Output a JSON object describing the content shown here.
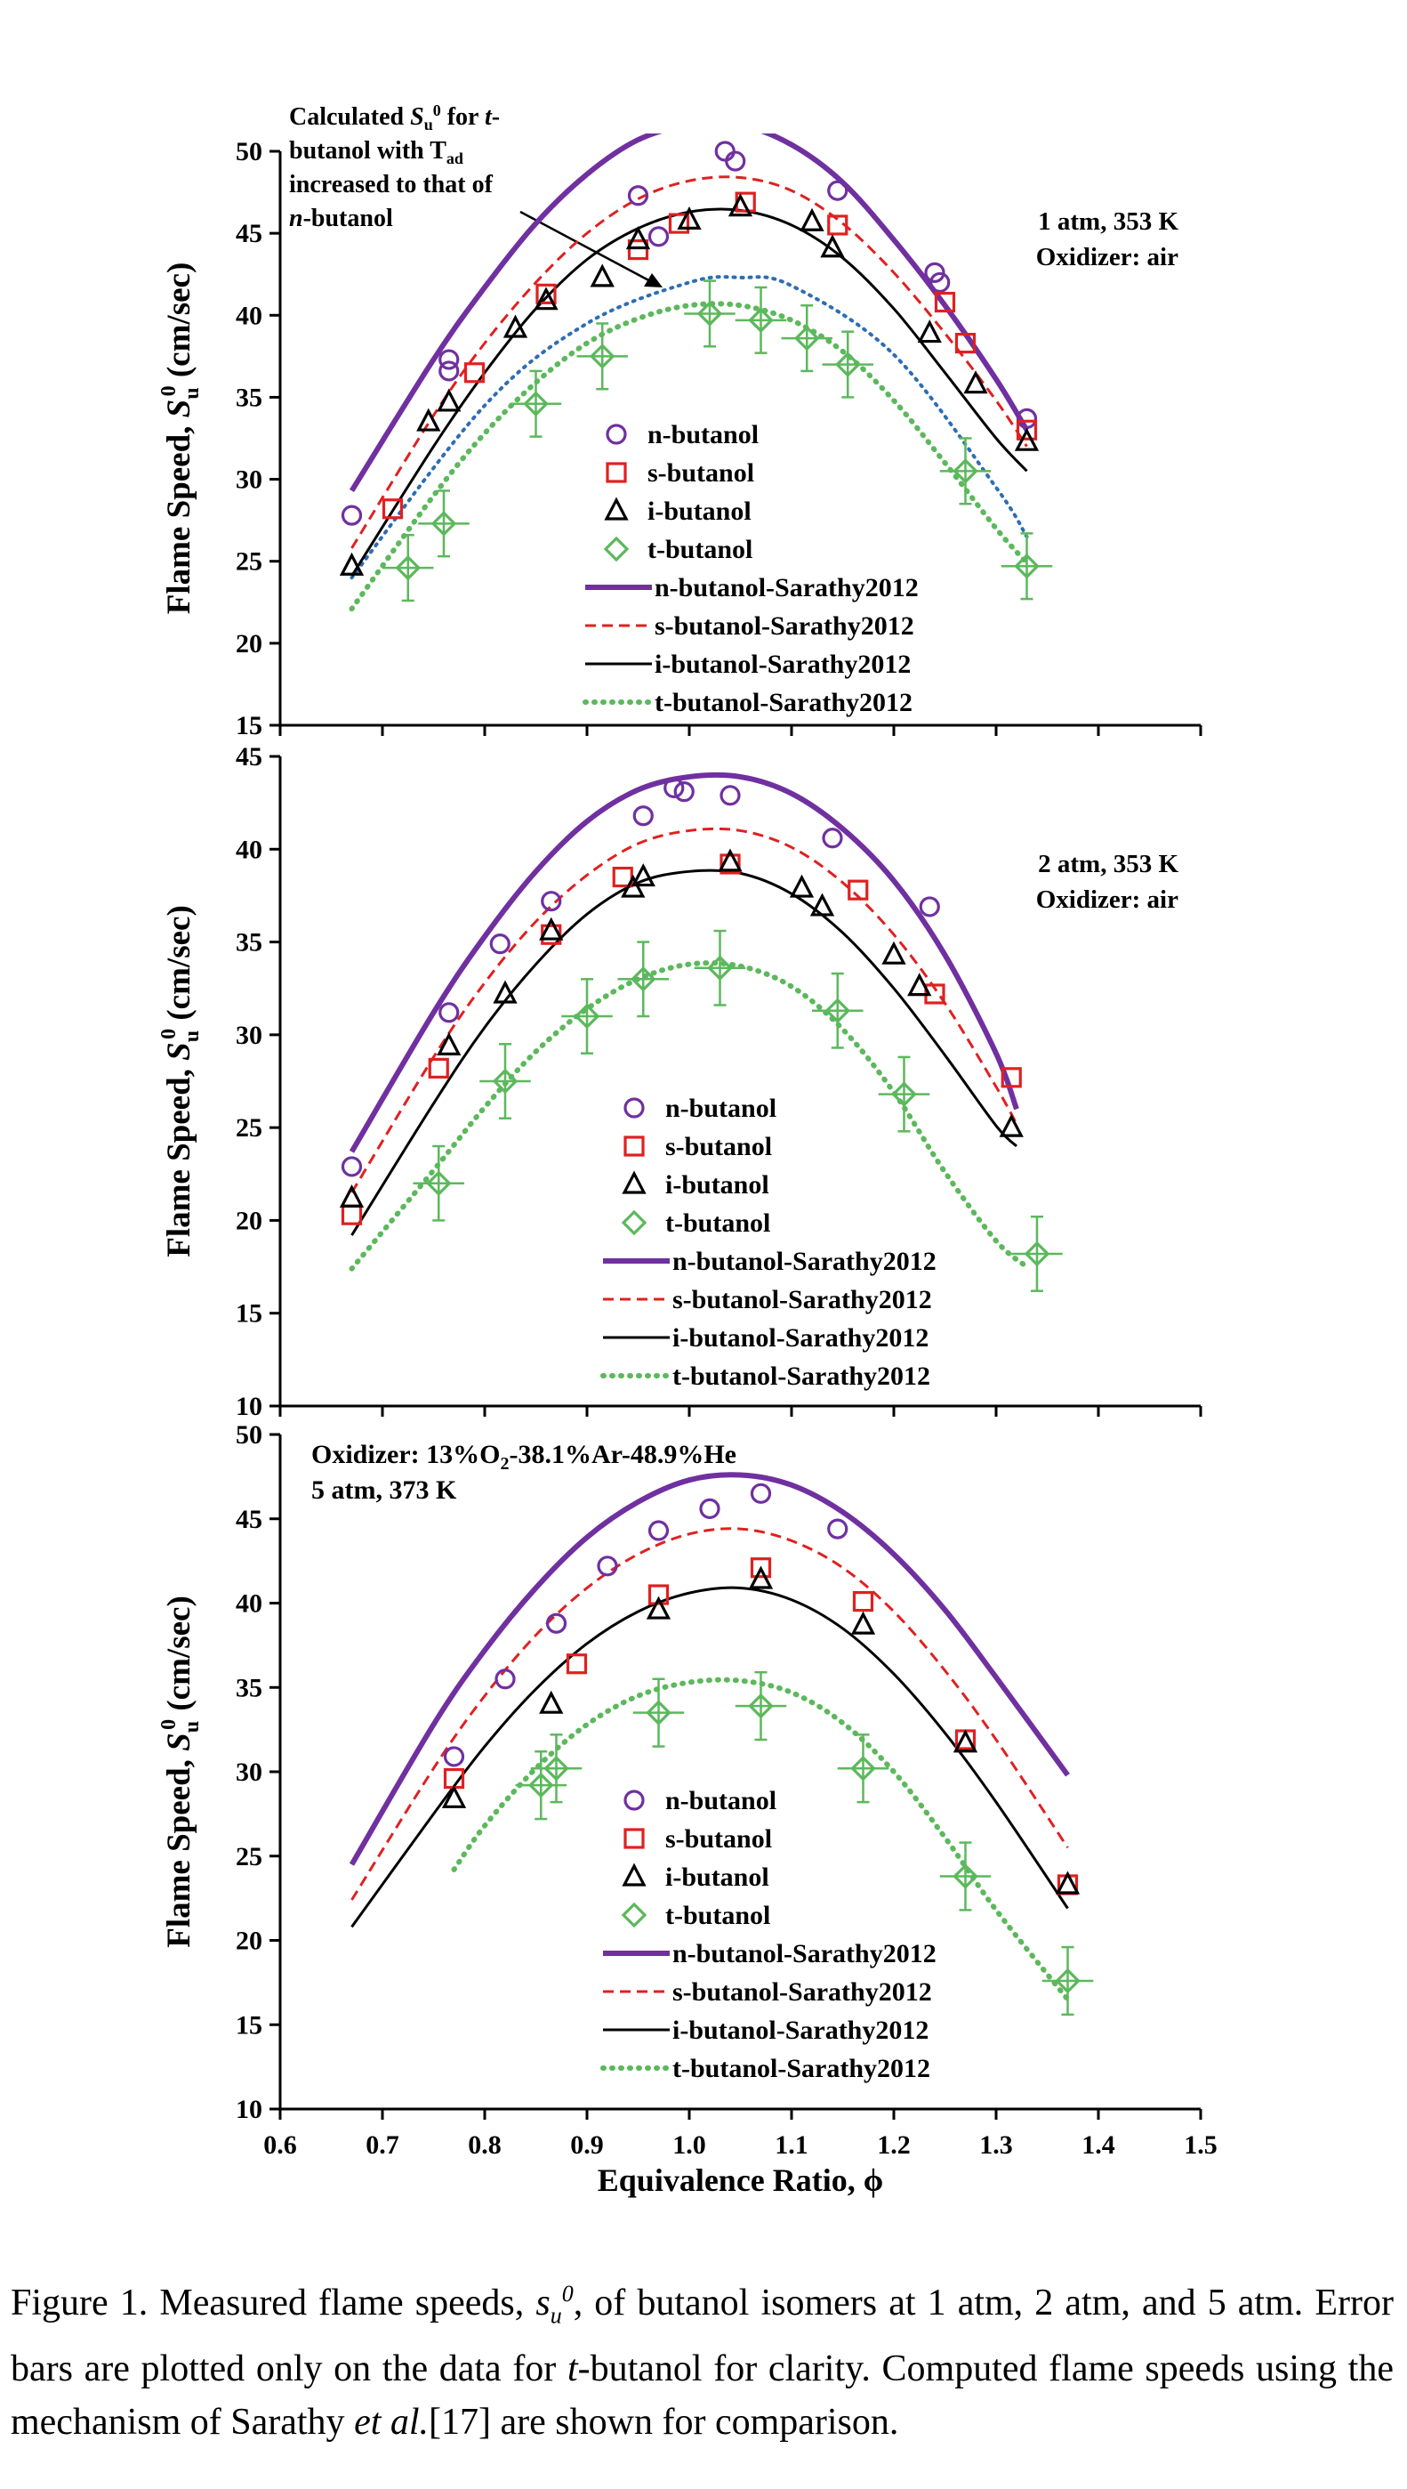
{
  "figure": {
    "x_label": "Equivalence Ratio, ϕ",
    "x_ticks": [
      "0.6",
      "0.7",
      "0.8",
      "0.9",
      "1.0",
      "1.1",
      "1.2",
      "1.3",
      "1.4",
      "1.5"
    ],
    "y_label_prefix": "Flame Speed, ",
    "y_label_symbol": "S",
    "y_label_sub": "u",
    "y_label_sup": "0",
    "y_label_unit": " (cm/sec)",
    "legend_markers": [
      "n-butanol",
      "s-butanol",
      "i-butanol",
      "t-butanol"
    ],
    "legend_lines": [
      "n-butanol-Sarathy2012",
      "s-butanol-Sarathy2012",
      "i-butanol-Sarathy2012",
      "t-butanol-Sarathy2012"
    ],
    "colors": {
      "n": "#7030a0",
      "s": "#e02020",
      "i": "#000000",
      "t": "#5cb85c",
      "annot": "#2e6db4"
    }
  },
  "chart_data": [
    {
      "type": "scatter",
      "conditions": [
        "1 atm, 353 K",
        "Oxidizer: air"
      ],
      "annotation": {
        "text_lines": [
          "Calculated Su0 for t-",
          "butanol with Tad",
          "increased to that of",
          "n-butanol"
        ],
        "curve_phi": [
          0.67,
          0.8,
          0.9,
          1.0,
          1.05,
          1.1,
          1.2,
          1.3,
          1.33
        ],
        "curve_values": [
          24.0,
          34.5,
          39.5,
          42.0,
          42.3,
          41.8,
          37.6,
          29.5,
          26.5
        ]
      },
      "x_range": [
        0.6,
        1.5
      ],
      "y_range": [
        15,
        50
      ],
      "y_ticks": [
        "15",
        "20",
        "25",
        "30",
        "35",
        "40",
        "45",
        "50"
      ],
      "series": [
        {
          "name": "n-butanol",
          "marker": "circle",
          "x": [
            0.67,
            0.765,
            0.765,
            0.95,
            0.97,
            1.035,
            1.045,
            1.145,
            1.24,
            1.245,
            1.33
          ],
          "y": [
            27.8,
            36.6,
            37.3,
            47.3,
            44.8,
            50.0,
            49.4,
            47.6,
            42.6,
            42.0,
            33.7
          ]
        },
        {
          "name": "s-butanol",
          "marker": "square",
          "x": [
            0.71,
            0.79,
            0.86,
            0.95,
            0.99,
            1.055,
            1.145,
            1.25,
            1.27,
            1.33
          ],
          "y": [
            28.2,
            36.5,
            41.3,
            44.0,
            45.6,
            46.9,
            45.5,
            40.8,
            38.3,
            33.0
          ]
        },
        {
          "name": "i-butanol",
          "marker": "triangle",
          "x": [
            0.67,
            0.745,
            0.765,
            0.83,
            0.86,
            0.915,
            0.95,
            1.0,
            1.05,
            1.12,
            1.14,
            1.235,
            1.28,
            1.33
          ],
          "y": [
            24.7,
            33.5,
            34.7,
            39.2,
            40.9,
            42.3,
            44.6,
            45.8,
            46.6,
            45.7,
            44.1,
            38.9,
            35.8,
            32.3
          ]
        },
        {
          "name": "t-butanol",
          "marker": "diamond",
          "x": [
            0.725,
            0.76,
            0.85,
            0.915,
            1.02,
            1.07,
            1.115,
            1.155,
            1.27,
            1.33
          ],
          "y": [
            24.6,
            27.3,
            34.6,
            37.5,
            40.1,
            39.7,
            38.6,
            37.0,
            30.5,
            24.7
          ]
        },
        {
          "name": "n-butanol-Sarathy2012",
          "line": "solid",
          "x": [
            0.67,
            0.75,
            0.8,
            0.85,
            0.9,
            0.95,
            1.0,
            1.05,
            1.1,
            1.15,
            1.2,
            1.25,
            1.3,
            1.33
          ],
          "y": [
            29.3,
            37.3,
            41.7,
            45.6,
            48.6,
            50.7,
            51.6,
            51.6,
            50.4,
            48.1,
            44.6,
            40.6,
            36.1,
            33.0
          ]
        },
        {
          "name": "s-butanol-Sarathy2012",
          "line": "dashed",
          "x": [
            0.67,
            0.75,
            0.8,
            0.85,
            0.9,
            0.95,
            1.0,
            1.05,
            1.1,
            1.15,
            1.2,
            1.25,
            1.3,
            1.33
          ],
          "y": [
            25.8,
            33.9,
            38.3,
            42.0,
            45.0,
            47.1,
            48.2,
            48.4,
            47.6,
            45.6,
            42.6,
            38.9,
            34.8,
            32.0
          ]
        },
        {
          "name": "i-butanol-Sarathy2012",
          "line": "solid-thin",
          "x": [
            0.67,
            0.75,
            0.8,
            0.85,
            0.9,
            0.95,
            1.0,
            1.05,
            1.1,
            1.15,
            1.2,
            1.25,
            1.3,
            1.33
          ],
          "y": [
            24.1,
            32.0,
            36.5,
            40.4,
            43.4,
            45.3,
            46.3,
            46.4,
            45.5,
            43.5,
            40.4,
            36.5,
            32.5,
            30.5
          ]
        },
        {
          "name": "t-butanol-Sarathy2012",
          "line": "dotted",
          "x": [
            0.67,
            0.75,
            0.8,
            0.85,
            0.9,
            0.95,
            1.0,
            1.05,
            1.1,
            1.15,
            1.2,
            1.25,
            1.3,
            1.33
          ],
          "y": [
            22.1,
            29.0,
            32.8,
            35.9,
            38.3,
            39.8,
            40.6,
            40.6,
            39.7,
            37.8,
            34.8,
            31.0,
            27.0,
            24.9
          ]
        }
      ]
    },
    {
      "type": "scatter",
      "conditions": [
        "2 atm, 353 K",
        "Oxidizer: air"
      ],
      "x_range": [
        0.6,
        1.5
      ],
      "y_range": [
        10,
        45
      ],
      "y_ticks": [
        "10",
        "15",
        "20",
        "25",
        "30",
        "35",
        "40",
        "45"
      ],
      "series": [
        {
          "name": "n-butanol",
          "marker": "circle",
          "x": [
            0.67,
            0.765,
            0.815,
            0.865,
            0.955,
            0.985,
            0.995,
            1.04,
            1.14,
            1.235
          ],
          "y": [
            22.9,
            31.2,
            34.9,
            37.2,
            41.8,
            43.3,
            43.1,
            42.9,
            40.6,
            36.9
          ]
        },
        {
          "name": "s-butanol",
          "marker": "square",
          "x": [
            0.67,
            0.755,
            0.865,
            0.935,
            1.04,
            1.165,
            1.24,
            1.315
          ],
          "y": [
            20.3,
            28.2,
            35.4,
            38.5,
            39.2,
            37.8,
            32.2,
            27.7
          ]
        },
        {
          "name": "i-butanol",
          "marker": "triangle",
          "x": [
            0.67,
            0.765,
            0.82,
            0.865,
            0.945,
            0.955,
            1.04,
            1.11,
            1.13,
            1.2,
            1.225,
            1.315
          ],
          "y": [
            21.2,
            29.4,
            32.2,
            35.6,
            37.9,
            38.5,
            39.3,
            37.9,
            36.9,
            34.3,
            32.6,
            25.0
          ]
        },
        {
          "name": "t-butanol",
          "marker": "diamond",
          "x": [
            0.755,
            0.82,
            0.9,
            0.955,
            1.03,
            1.145,
            1.21,
            1.34
          ],
          "y": [
            22.0,
            27.5,
            31.0,
            33.0,
            33.6,
            31.3,
            26.8,
            18.2
          ]
        },
        {
          "name": "n-butanol-Sarathy2012",
          "line": "solid",
          "x": [
            0.67,
            0.75,
            0.8,
            0.85,
            0.9,
            0.95,
            1.0,
            1.05,
            1.1,
            1.15,
            1.2,
            1.25,
            1.3,
            1.32
          ],
          "y": [
            23.7,
            31.2,
            35.3,
            38.8,
            41.5,
            43.2,
            43.9,
            43.9,
            43.0,
            41.1,
            38.3,
            34.3,
            29.0,
            26.0
          ]
        },
        {
          "name": "s-butanol-Sarathy2012",
          "line": "dashed",
          "x": [
            0.67,
            0.75,
            0.8,
            0.85,
            0.9,
            0.95,
            1.0,
            1.05,
            1.1,
            1.15,
            1.2,
            1.25,
            1.3,
            1.32
          ],
          "y": [
            21.5,
            28.8,
            32.8,
            36.1,
            38.6,
            40.3,
            41.0,
            41.0,
            40.1,
            38.2,
            35.4,
            31.7,
            27.2,
            25.2
          ]
        },
        {
          "name": "i-butanol-Sarathy2012",
          "line": "solid-thin",
          "x": [
            0.67,
            0.75,
            0.8,
            0.85,
            0.9,
            0.95,
            1.0,
            1.05,
            1.1,
            1.15,
            1.2,
            1.25,
            1.3,
            1.32
          ],
          "y": [
            19.2,
            26.3,
            30.4,
            33.8,
            36.5,
            38.2,
            38.8,
            38.7,
            37.6,
            35.5,
            32.5,
            28.9,
            25.1,
            24.0
          ]
        },
        {
          "name": "t-butanol-Sarathy2012",
          "line": "dotted",
          "x": [
            0.67,
            0.75,
            0.8,
            0.85,
            0.9,
            0.95,
            1.0,
            1.05,
            1.1,
            1.15,
            1.2,
            1.25,
            1.3,
            1.33
          ],
          "y": [
            17.4,
            22.7,
            26.1,
            29.1,
            31.4,
            33.0,
            33.8,
            33.7,
            32.6,
            30.3,
            26.9,
            22.6,
            18.9,
            17.5
          ]
        }
      ]
    },
    {
      "type": "scatter",
      "conditions": [
        "Oxidizer: 13%O2-38.1%Ar-48.9%He",
        "5 atm, 373 K"
      ],
      "x_range": [
        0.6,
        1.5
      ],
      "y_range": [
        10,
        50
      ],
      "y_ticks": [
        "10",
        "15",
        "20",
        "25",
        "30",
        "35",
        "40",
        "45",
        "50"
      ],
      "series": [
        {
          "name": "n-butanol",
          "marker": "circle",
          "x": [
            0.77,
            0.82,
            0.87,
            0.92,
            0.97,
            1.02,
            1.07,
            1.145
          ],
          "y": [
            30.9,
            35.5,
            38.8,
            42.2,
            44.3,
            45.6,
            46.5,
            44.4
          ]
        },
        {
          "name": "s-butanol",
          "marker": "square",
          "x": [
            0.77,
            0.89,
            0.97,
            1.07,
            1.17,
            1.27,
            1.37
          ],
          "y": [
            29.6,
            36.4,
            40.5,
            42.1,
            40.1,
            31.9,
            23.3
          ]
        },
        {
          "name": "i-butanol",
          "marker": "triangle",
          "x": [
            0.77,
            0.865,
            0.97,
            1.07,
            1.17,
            1.27,
            1.37
          ],
          "y": [
            28.4,
            34.0,
            39.6,
            41.4,
            38.7,
            31.7,
            23.3
          ]
        },
        {
          "name": "t-butanol",
          "marker": "diamond",
          "x": [
            0.855,
            0.87,
            0.97,
            1.07,
            1.17,
            1.27,
            1.37
          ],
          "y": [
            29.2,
            30.2,
            33.5,
            33.9,
            30.2,
            23.8,
            17.6
          ]
        },
        {
          "name": "n-butanol-Sarathy2012",
          "line": "solid",
          "x": [
            0.67,
            0.75,
            0.8,
            0.85,
            0.9,
            0.95,
            1.0,
            1.05,
            1.1,
            1.15,
            1.2,
            1.25,
            1.3,
            1.37
          ],
          "y": [
            24.5,
            32.8,
            37.2,
            40.9,
            43.9,
            46.0,
            47.3,
            47.6,
            47.0,
            45.4,
            42.9,
            39.6,
            35.6,
            29.8
          ]
        },
        {
          "name": "s-butanol-Sarathy2012",
          "line": "dashed",
          "x": [
            0.67,
            0.75,
            0.8,
            0.85,
            0.9,
            0.95,
            1.0,
            1.05,
            1.1,
            1.15,
            1.2,
            1.25,
            1.3,
            1.37
          ],
          "y": [
            22.4,
            30.2,
            34.5,
            38.1,
            40.9,
            42.9,
            44.1,
            44.4,
            43.7,
            42.1,
            39.5,
            36.0,
            31.9,
            25.5
          ]
        },
        {
          "name": "i-butanol-Sarathy2012",
          "line": "solid-thin",
          "x": [
            0.67,
            0.75,
            0.8,
            0.85,
            0.9,
            0.95,
            1.0,
            1.05,
            1.1,
            1.15,
            1.2,
            1.25,
            1.3,
            1.37
          ],
          "y": [
            20.8,
            27.5,
            31.5,
            34.9,
            37.6,
            39.5,
            40.6,
            40.9,
            40.2,
            38.5,
            35.8,
            32.3,
            28.2,
            21.9
          ]
        },
        {
          "name": "t-butanol-Sarathy2012",
          "line": "dotted",
          "x": [
            0.77,
            0.8,
            0.85,
            0.9,
            0.95,
            1.0,
            1.05,
            1.1,
            1.15,
            1.2,
            1.25,
            1.3,
            1.37
          ],
          "y": [
            24.2,
            26.8,
            30.2,
            32.8,
            34.5,
            35.3,
            35.4,
            34.7,
            32.9,
            30.0,
            26.1,
            21.8,
            16.5
          ]
        }
      ]
    }
  ],
  "caption": {
    "p1": "Figure 1. Measured flame speeds, ",
    "sym_base": "s",
    "sym_sub": "u",
    "sym_sup": "0",
    "p2": ", of butanol isomers at 1 atm, 2 atm, and 5 atm.  Error bars are plotted only on the data for ",
    "t_italic": "t",
    "p3": "-butanol for clarity. Computed flame speeds using the mechanism of Sarathy ",
    "et_al": "et al.",
    "p4": "[17] are shown for comparison."
  }
}
